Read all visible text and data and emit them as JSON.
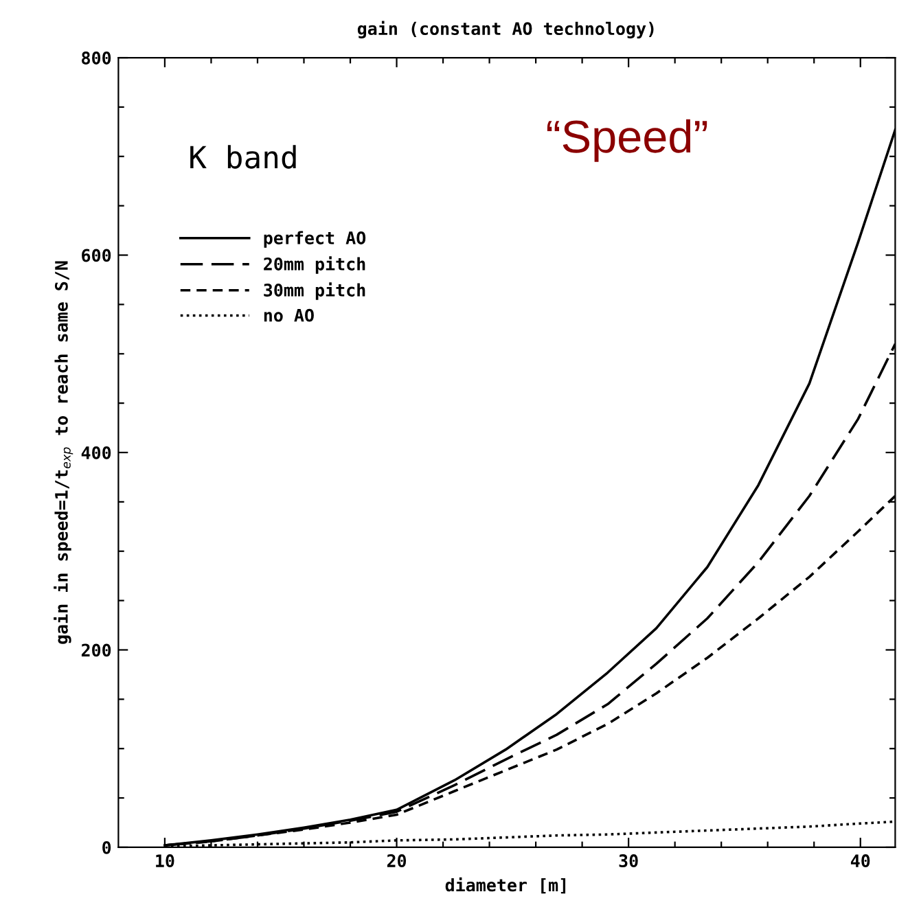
{
  "chart_data": {
    "type": "line",
    "title": "gain (constant AO technology)",
    "xlabel": "diameter [m]",
    "ylabel": "gain in speed=1/t$_{exp}$ to reach same S/N",
    "annotations": [
      "K band",
      "“Speed”"
    ],
    "x": [
      10,
      12,
      14,
      16,
      18,
      20,
      22.5,
      24.7,
      26.9,
      29.1,
      31.2,
      33.4,
      35.6,
      37.8,
      39.9,
      41.5
    ],
    "series": [
      {
        "name": "perfect AO",
        "color": "#000000",
        "line_style": "solid",
        "values": [
          2,
          7,
          13,
          20,
          28,
          38,
          68,
          99,
          135,
          177,
          222,
          284,
          367,
          470,
          613,
          727
        ]
      },
      {
        "name": "20mm pitch",
        "color": "#000000",
        "line_style": "longdash",
        "values": [
          2,
          6,
          12,
          19,
          27,
          36,
          63,
          89,
          114,
          145,
          186,
          232,
          289,
          356,
          434,
          510
        ]
      },
      {
        "name": "30mm pitch",
        "color": "#000000",
        "line_style": "dashed",
        "values": [
          2,
          6,
          12,
          18,
          25,
          33,
          57,
          78,
          99,
          125,
          156,
          192,
          232,
          274,
          320,
          356
        ]
      },
      {
        "name": "no AO",
        "color": "#000000",
        "line_style": "dotted",
        "values": [
          1,
          2,
          3,
          4,
          5,
          7,
          8,
          10,
          12,
          13,
          15,
          17,
          19,
          21,
          24,
          26
        ]
      }
    ],
    "xlim": [
      8,
      41.5
    ],
    "ylim": [
      0,
      800
    ],
    "xticks": [
      {
        "value": 10,
        "label": "10"
      },
      {
        "value": 12,
        "label": null
      },
      {
        "value": 14,
        "label": null
      },
      {
        "value": 16,
        "label": null
      },
      {
        "value": 18,
        "label": null
      },
      {
        "value": 20,
        "label": "20"
      },
      {
        "value": 22,
        "label": null
      },
      {
        "value": 24,
        "label": null
      },
      {
        "value": 26,
        "label": null
      },
      {
        "value": 28,
        "label": null
      },
      {
        "value": 30,
        "label": "30"
      },
      {
        "value": 32,
        "label": null
      },
      {
        "value": 34,
        "label": null
      },
      {
        "value": 36,
        "label": null
      },
      {
        "value": 38,
        "label": null
      },
      {
        "value": 40,
        "label": "40"
      }
    ],
    "yticks": [
      0,
      {
        "value": 50,
        "label": null
      },
      {
        "value": 100,
        "label": null
      },
      {
        "value": 150,
        "label": null
      },
      200,
      {
        "value": 250,
        "label": null
      },
      {
        "value": 300,
        "label": null
      },
      {
        "value": 350,
        "label": null
      },
      400,
      {
        "value": 450,
        "label": null
      },
      {
        "value": 500,
        "label": null
      },
      {
        "value": 550,
        "label": null
      },
      600,
      {
        "value": 650,
        "label": null
      },
      {
        "value": 700,
        "label": null
      },
      {
        "value": 750,
        "label": null
      },
      800
    ],
    "grid": false,
    "legend": "top left",
    "marker": "none"
  }
}
